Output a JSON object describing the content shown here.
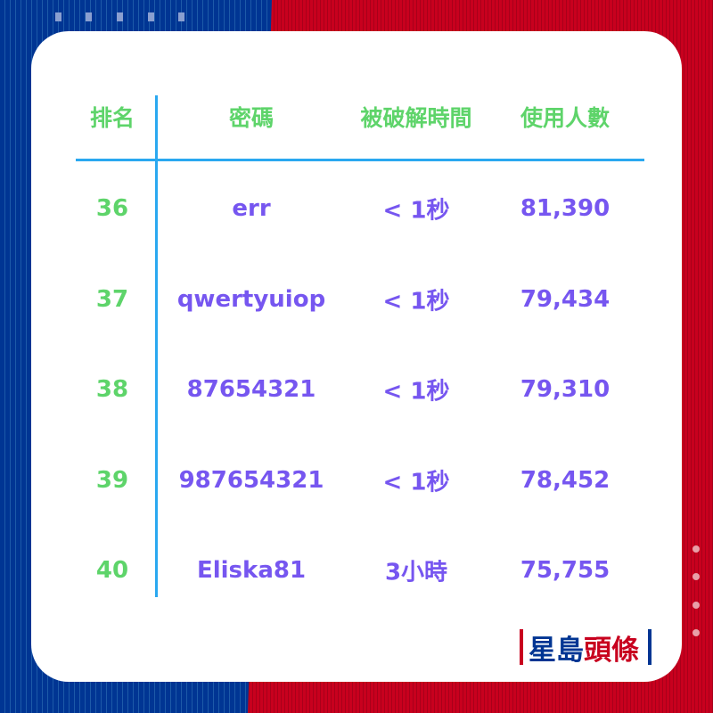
{
  "colors": {
    "blue": "#003593",
    "red": "#c8001e",
    "green": "#5ed46a",
    "purple": "#7656f0",
    "rule": "#2aa8f0"
  },
  "table": {
    "headers": [
      "排名",
      "密碼",
      "被破解時間",
      "使用人數"
    ],
    "rows": [
      [
        "36",
        "err",
        "< 1秒",
        "81,390"
      ],
      [
        "37",
        "qwertyuiop",
        "< 1秒",
        "79,434"
      ],
      [
        "38",
        "87654321",
        "< 1秒",
        "79,310"
      ],
      [
        "39",
        "987654321",
        "< 1秒",
        "78,452"
      ],
      [
        "40",
        "Eliska81",
        "3小時",
        "75,755"
      ]
    ]
  },
  "logo": {
    "part1": "星島",
    "part2": "頭條"
  }
}
